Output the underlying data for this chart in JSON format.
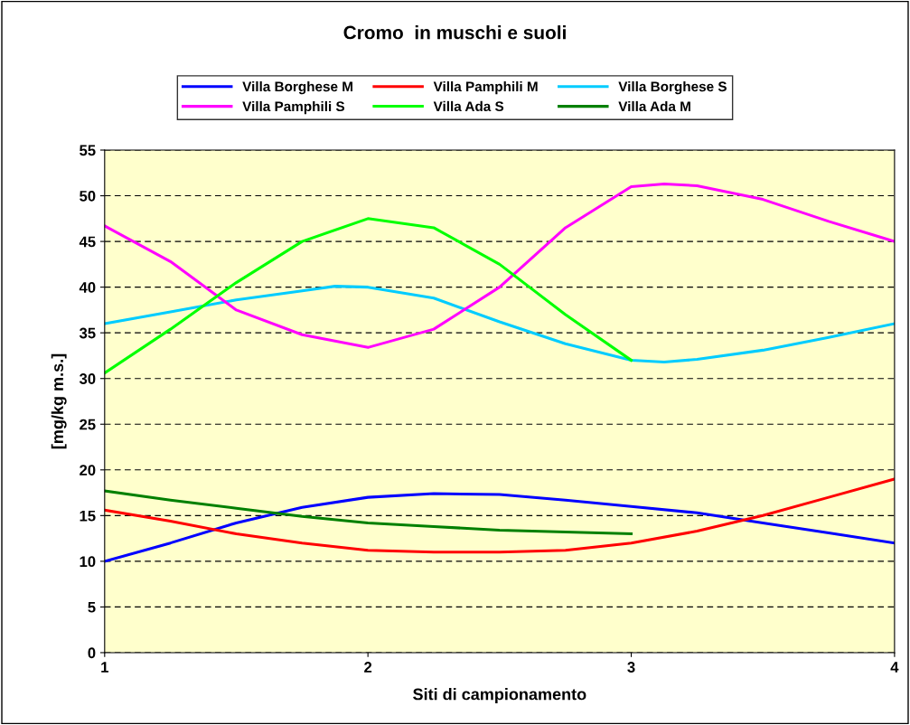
{
  "chart_data": {
    "type": "line",
    "title": "Cromo  in muschi e suoli",
    "xlabel": "Siti di campionamento",
    "ylabel": "[mg/kg m.s.]",
    "xlim": [
      1,
      4
    ],
    "xticks": [
      1,
      2,
      3,
      4
    ],
    "ylim": [
      0,
      55
    ],
    "yticks": [
      0,
      5,
      10,
      15,
      20,
      25,
      30,
      35,
      40,
      45,
      50,
      55
    ],
    "grid": "y",
    "legend": "top",
    "marker": "none",
    "line_style": "solid",
    "series": [
      {
        "name": "Villa Borghese M",
        "color": "#0000ff",
        "x": [
          1,
          1.25,
          1.5,
          1.75,
          2,
          2.25,
          2.5,
          2.75,
          3,
          3.25,
          3.5,
          3.75,
          4
        ],
        "values": [
          10,
          12,
          14.2,
          15.9,
          17,
          17.4,
          17.3,
          16.7,
          16,
          15.3,
          14.2,
          13.1,
          12
        ]
      },
      {
        "name": "Villa Pamphili M",
        "color": "#ff0000",
        "x": [
          1,
          1.25,
          1.5,
          1.75,
          2,
          2.25,
          2.5,
          2.75,
          3,
          3.25,
          3.5,
          3.75,
          4
        ],
        "values": [
          15.6,
          14.4,
          13,
          12,
          11.2,
          11,
          11,
          11.2,
          12,
          13.3,
          15,
          17,
          19
        ]
      },
      {
        "name": "Villa Borghese S",
        "color": "#00ccff",
        "x": [
          1,
          1.25,
          1.5,
          1.75,
          1.875,
          2,
          2.25,
          2.5,
          2.75,
          3,
          3.125,
          3.25,
          3.5,
          3.75,
          4
        ],
        "values": [
          36,
          37.3,
          38.6,
          39.6,
          40.1,
          40,
          38.8,
          36.2,
          33.8,
          32,
          31.8,
          32.1,
          33.1,
          34.5,
          36
        ]
      },
      {
        "name": "Villa Pamphili S",
        "color": "#ff00ff",
        "x": [
          1,
          1.25,
          1.5,
          1.75,
          2,
          2.25,
          2.5,
          2.75,
          3,
          3.125,
          3.25,
          3.5,
          3.75,
          4
        ],
        "values": [
          46.7,
          42.8,
          37.5,
          34.8,
          33.4,
          35.4,
          40,
          46.5,
          51,
          51.3,
          51.1,
          49.6,
          47.2,
          45
        ]
      },
      {
        "name": "Villa Ada S",
        "color": "#00ff00",
        "x": [
          1,
          1.25,
          1.5,
          1.75,
          2,
          2.25,
          2.5,
          2.75,
          3
        ],
        "values": [
          30.6,
          35.4,
          40.5,
          45,
          47.5,
          46.5,
          42.5,
          37,
          32
        ]
      },
      {
        "name": "Villa Ada M",
        "color": "#008000",
        "x": [
          1,
          1.25,
          1.5,
          1.75,
          2,
          2.25,
          2.5,
          2.75,
          3
        ],
        "values": [
          17.7,
          16.7,
          15.8,
          14.9,
          14.2,
          13.8,
          13.4,
          13.2,
          13
        ]
      }
    ]
  }
}
